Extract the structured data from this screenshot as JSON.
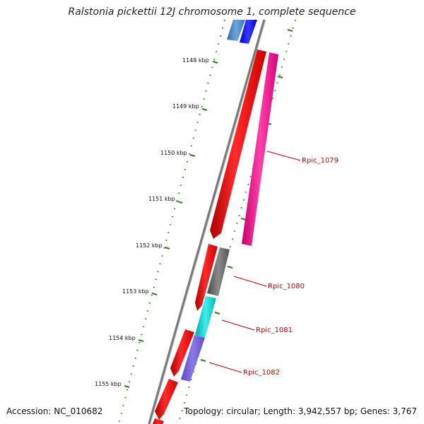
{
  "title": "Ralstonia pickettii 12J chromosome 1, complete sequence",
  "footer": {
    "accession": "Accession: NC_010682",
    "stats": "Topology: circular; Length: 3,942,557 bp; Genes: 3,767"
  },
  "colors": {
    "backbone": "#888888",
    "tick": "#2e7d1e",
    "forward_gene": "#ff0000",
    "label_text": "#cc0000"
  },
  "ticks": [
    {
      "kbp": 1148,
      "label": "1148 kbp"
    },
    {
      "kbp": 1149,
      "label": "1149 kbp"
    },
    {
      "kbp": 1150,
      "label": "1150 kbp"
    },
    {
      "kbp": 1151,
      "label": "1151 kbp"
    },
    {
      "kbp": 1152,
      "label": "1152 kbp"
    },
    {
      "kbp": 1153,
      "label": "1153 kbp"
    },
    {
      "kbp": 1154,
      "label": "1154 kbp"
    },
    {
      "kbp": 1155,
      "label": "1155 kbp"
    }
  ],
  "gene_labels": [
    "Rpic_1079",
    "Rpic_1080",
    "Rpic_1081",
    "Rpic_1082"
  ]
}
